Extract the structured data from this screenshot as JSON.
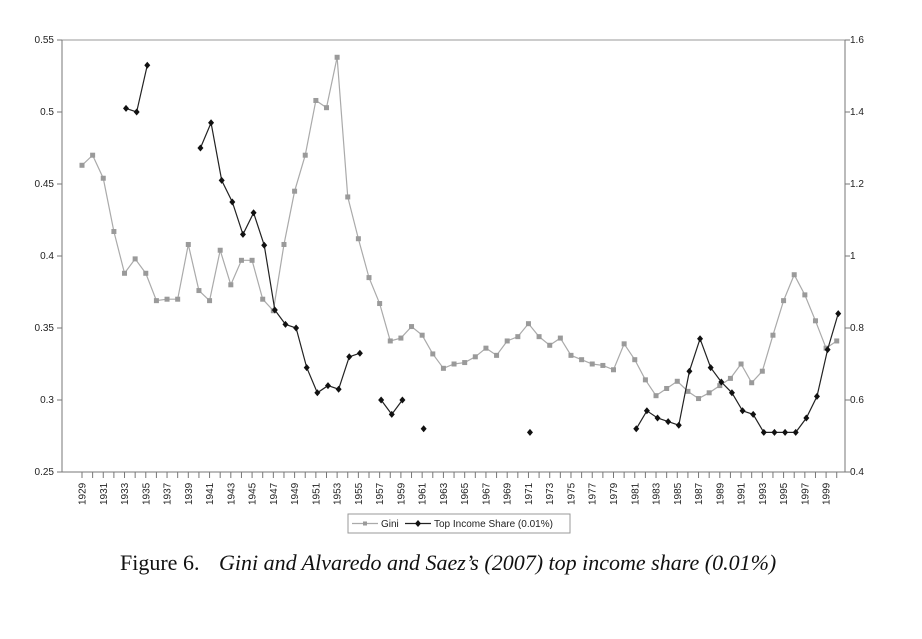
{
  "chart_data": {
    "type": "line",
    "title": "",
    "xlabel": "",
    "ylabel": "",
    "x": [
      1929,
      1930,
      1931,
      1932,
      1933,
      1934,
      1935,
      1936,
      1937,
      1938,
      1939,
      1940,
      1941,
      1942,
      1943,
      1944,
      1945,
      1946,
      1947,
      1948,
      1949,
      1950,
      1951,
      1952,
      1953,
      1954,
      1955,
      1956,
      1957,
      1958,
      1959,
      1960,
      1961,
      1962,
      1963,
      1964,
      1965,
      1966,
      1967,
      1968,
      1969,
      1970,
      1971,
      1972,
      1973,
      1974,
      1975,
      1976,
      1977,
      1978,
      1979,
      1980,
      1981,
      1982,
      1983,
      1984,
      1985,
      1986,
      1987,
      1988,
      1989,
      1990,
      1991,
      1992,
      1993,
      1994,
      1995,
      1996,
      1997,
      1998,
      1999,
      2000
    ],
    "x_tick_labels": [
      "1929",
      "1931",
      "1933",
      "1935",
      "1937",
      "1939",
      "1941",
      "1943",
      "1945",
      "1947",
      "1949",
      "1951",
      "1953",
      "1955",
      "1957",
      "1959",
      "1961",
      "1963",
      "1965",
      "1967",
      "1969",
      "1971",
      "1973",
      "1975",
      "1977",
      "1979",
      "1981",
      "1983",
      "1985",
      "1987",
      "1989",
      "1991",
      "1993",
      "1995",
      "1997",
      "1999"
    ],
    "y_left": {
      "lim": [
        0.25,
        0.55
      ],
      "ticks": [
        "0.25",
        "0.3",
        "0.35",
        "0.4",
        "0.45",
        "0.5",
        "0.55"
      ]
    },
    "y_right": {
      "lim": [
        0.4,
        1.6
      ],
      "ticks": [
        "0.4",
        "0.6",
        "0.8",
        "1",
        "1.2",
        "1.4",
        "1.6"
      ]
    },
    "grid": false,
    "legend_position": "bottom",
    "series": [
      {
        "name": "Gini",
        "axis": "left",
        "color": "#9a9a9a",
        "marker": "square",
        "values": [
          0.463,
          0.47,
          0.454,
          0.417,
          0.388,
          0.398,
          0.388,
          0.369,
          0.37,
          0.37,
          0.408,
          0.376,
          0.369,
          0.404,
          0.38,
          0.397,
          0.397,
          0.37,
          0.362,
          0.408,
          0.445,
          0.47,
          0.508,
          0.503,
          0.538,
          0.441,
          0.412,
          0.385,
          0.367,
          0.341,
          0.343,
          0.351,
          0.345,
          0.332,
          0.322,
          0.325,
          0.326,
          0.33,
          0.336,
          0.331,
          0.341,
          0.344,
          0.353,
          0.344,
          0.338,
          0.343,
          0.331,
          0.328,
          0.325,
          0.324,
          0.321,
          0.339,
          0.328,
          0.314,
          0.303,
          0.308,
          0.313,
          0.306,
          0.301,
          0.305,
          0.31,
          0.315,
          0.325,
          0.312,
          0.32,
          0.345,
          0.369,
          0.387,
          0.373,
          0.355,
          0.336,
          0.341
        ]
      },
      {
        "name": "Top Income Share (0.01%)",
        "axis": "right",
        "color": "#111111",
        "marker": "diamond",
        "values": [
          null,
          null,
          null,
          null,
          1.41,
          1.4,
          1.53,
          null,
          null,
          null,
          null,
          1.3,
          1.37,
          1.21,
          1.15,
          1.06,
          1.12,
          1.03,
          0.85,
          0.81,
          0.8,
          0.69,
          0.62,
          0.64,
          0.63,
          0.72,
          0.73,
          null,
          0.6,
          0.56,
          0.6,
          null,
          0.52,
          null,
          null,
          null,
          null,
          null,
          null,
          null,
          null,
          null,
          0.51,
          null,
          null,
          null,
          null,
          null,
          null,
          null,
          null,
          null,
          0.52,
          0.57,
          0.55,
          0.54,
          0.53,
          0.68,
          0.77,
          0.69,
          0.65,
          0.62,
          0.57,
          0.56,
          0.51,
          0.51,
          0.51,
          0.51,
          0.55,
          0.61,
          0.74,
          0.84
        ]
      }
    ]
  },
  "caption": {
    "label": "Figure 6.",
    "text": "Gini and Alvaredo and Saez’s (2007) top income share (0.01%)"
  }
}
